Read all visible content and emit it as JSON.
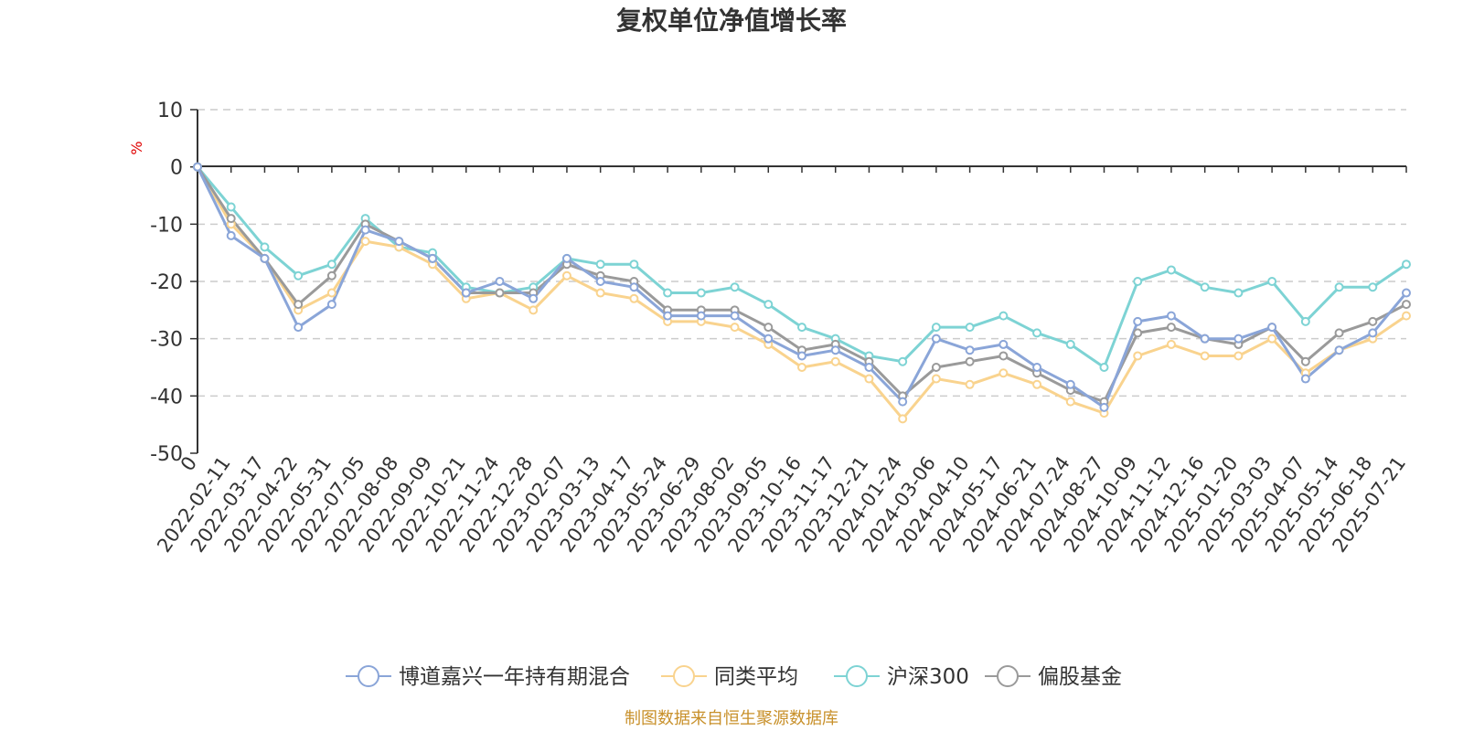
{
  "chart_data": {
    "type": "line",
    "title": "复权单位净值增长率",
    "ylabel": "%",
    "ylim": [
      -50,
      10
    ],
    "yticks": [
      "10",
      "0",
      "-10",
      "-20",
      "-30",
      "-40",
      "-50"
    ],
    "grid": true,
    "legend_position": "bottom",
    "x": [
      "0",
      "2022-02-11",
      "2022-03-17",
      "2022-04-22",
      "2022-05-31",
      "2022-07-05",
      "2022-08-08",
      "2022-09-09",
      "2022-10-21",
      "2022-11-24",
      "2022-12-28",
      "2023-02-07",
      "2023-03-13",
      "2023-04-17",
      "2023-05-24",
      "2023-06-29",
      "2023-08-02",
      "2023-09-05",
      "2023-10-16",
      "2023-11-17",
      "2023-12-21",
      "2024-01-24",
      "2024-03-06",
      "2024-04-10",
      "2024-05-17",
      "2024-06-21",
      "2024-07-24",
      "2024-08-27",
      "2024-10-09",
      "2024-11-12",
      "2024-12-16",
      "2025-01-20",
      "2025-03-03",
      "2025-04-07",
      "2025-05-14",
      "2025-06-18",
      "2025-07-21"
    ],
    "series": [
      {
        "name": "博道嘉兴一年持有期混合",
        "color": "#8aa5d8",
        "values": [
          0,
          -12,
          -16,
          -28,
          -24,
          -11,
          -13,
          -16,
          -22,
          -20,
          -23,
          -16,
          -20,
          -21,
          -26,
          -26,
          -26,
          -30,
          -33,
          -32,
          -35,
          -41,
          -30,
          -32,
          -31,
          -35,
          -38,
          -42,
          -27,
          -26,
          -30,
          -30,
          -28,
          -37,
          -32,
          -29,
          -22
        ]
      },
      {
        "name": "同类平均",
        "color": "#f9d38e",
        "values": [
          0,
          -10,
          -16,
          -25,
          -22,
          -13,
          -14,
          -17,
          -23,
          -22,
          -25,
          -19,
          -22,
          -23,
          -27,
          -27,
          -28,
          -31,
          -35,
          -34,
          -37,
          -44,
          -37,
          -38,
          -36,
          -38,
          -41,
          -43,
          -33,
          -31,
          -33,
          -33,
          -30,
          -36,
          -32,
          -30,
          -26
        ]
      },
      {
        "name": "沪深300",
        "color": "#7dd3d4",
        "values": [
          0,
          -7,
          -14,
          -19,
          -17,
          -9,
          -14,
          -15,
          -21,
          -22,
          -21,
          -16,
          -17,
          -17,
          -22,
          -22,
          -21,
          -24,
          -28,
          -30,
          -33,
          -34,
          -28,
          -28,
          -26,
          -29,
          -31,
          -35,
          -20,
          -18,
          -21,
          -22,
          -20,
          -27,
          -21,
          -21,
          -17
        ]
      },
      {
        "name": "偏股基金",
        "color": "#9a9a9a",
        "values": [
          0,
          -9,
          -16,
          -24,
          -19,
          -10,
          -13,
          -16,
          -22,
          -22,
          -22,
          -17,
          -19,
          -20,
          -25,
          -25,
          -25,
          -28,
          -32,
          -31,
          -34,
          -40,
          -35,
          -34,
          -33,
          -36,
          -39,
          -41,
          -29,
          -28,
          -30,
          -31,
          -28,
          -34,
          -29,
          -27,
          -24
        ]
      }
    ]
  },
  "source_note": "制图数据来自恒生聚源数据库"
}
